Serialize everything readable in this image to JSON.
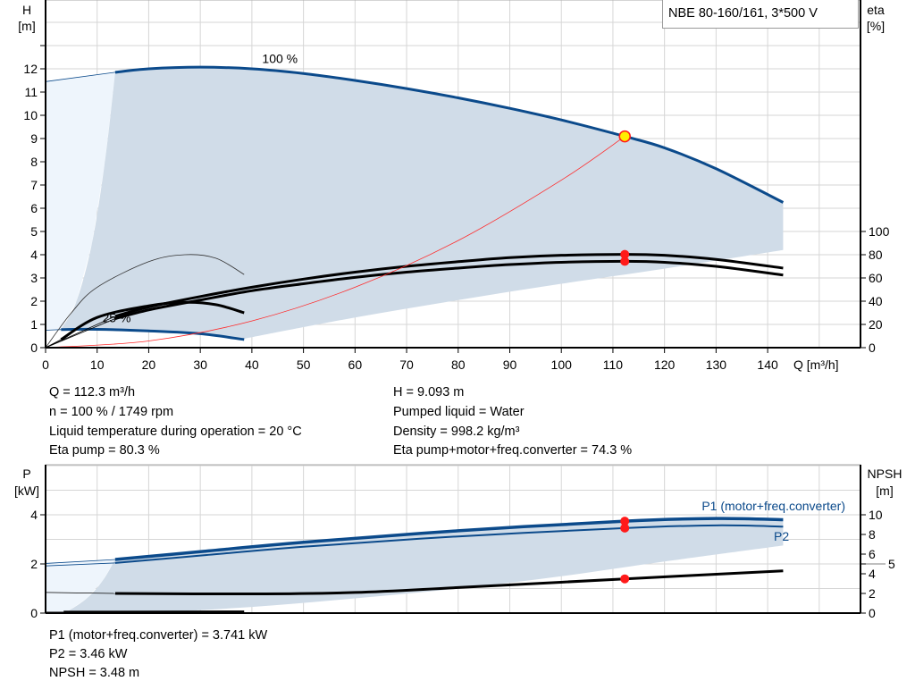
{
  "title": "NBE 80-160/161, 3*500 V",
  "colors": {
    "curve_blue": "#0b4a8b",
    "area_dark": "#d0dce8",
    "area_light": "#eef5fc",
    "grid": "#d6d6d6",
    "system_curve": "#ff2a2a",
    "duty_point": "#ff1a1a",
    "duty_point_fill": "#ffee00"
  },
  "info_top_left": [
    "Q = 112.3 m³/h",
    "n = 100 % / 1749 rpm",
    "Liquid temperature during operation = 20 °C",
    "Eta pump = 80.3 %"
  ],
  "info_top_right": [
    "H = 9.093 m",
    "Pumped liquid = Water",
    "Density = 998.2 kg/m³",
    "Eta pump+motor+freq.converter = 74.3 %"
  ],
  "info_bottom": [
    "P1 (motor+freq.converter) = 3.741 kW",
    "P2 = 3.46 kW",
    "NPSH = 3.48 m"
  ],
  "chart_data": [
    {
      "type": "line",
      "xlabel": "Q [m³/h]",
      "ylabel": [
        "H",
        "[m]"
      ],
      "y2label": [
        "eta",
        "[%]"
      ],
      "xlim": [
        0,
        158
      ],
      "ylim": [
        0,
        15
      ],
      "y2lim": [
        0,
        300
      ],
      "xticks": [
        0,
        10,
        20,
        30,
        40,
        50,
        60,
        70,
        80,
        90,
        100,
        110,
        120,
        130,
        140
      ],
      "yticks": [
        0,
        1,
        2,
        3,
        4,
        5,
        6,
        7,
        8,
        9,
        10,
        11,
        12
      ],
      "y2ticks": [
        0,
        20,
        40,
        60,
        80,
        100
      ],
      "grid": true,
      "curve_labels": [
        {
          "text": "100 %",
          "x": 42,
          "y": 12.25
        },
        {
          "text": "25 %",
          "x": 11,
          "y": 1.1
        }
      ],
      "series": [
        {
          "kind": "H 100%",
          "axis": "H",
          "points": [
            [
              13.5,
              11.85
            ],
            [
              20,
              12.0
            ],
            [
              30,
              12.07
            ],
            [
              40,
              12.0
            ],
            [
              50,
              11.8
            ],
            [
              60,
              11.5
            ],
            [
              70,
              11.15
            ],
            [
              80,
              10.75
            ],
            [
              90,
              10.3
            ],
            [
              100,
              9.8
            ],
            [
              112.3,
              9.093
            ],
            [
              120,
              8.6
            ],
            [
              130,
              7.7
            ],
            [
              143,
              6.25
            ]
          ],
          "extension": [
            [
              0,
              11.45
            ],
            [
              13.5,
              11.85
            ]
          ]
        },
        {
          "kind": "H 25%",
          "axis": "H",
          "points": [
            [
              3,
              0.78
            ],
            [
              10,
              0.79
            ],
            [
              20,
              0.72
            ],
            [
              30,
              0.6
            ],
            [
              38.5,
              0.35
            ]
          ],
          "extension": [
            [
              0,
              0.75
            ],
            [
              3,
              0.78
            ]
          ]
        },
        {
          "kind": "Eta pump",
          "axis": "eta",
          "points": [
            [
              13.5,
              27
            ],
            [
              20,
              35
            ],
            [
              30,
              44
            ],
            [
              40,
              52
            ],
            [
              50,
              59
            ],
            [
              60,
              65
            ],
            [
              70,
              70
            ],
            [
              80,
              74
            ],
            [
              90,
              77.5
            ],
            [
              100,
              79.5
            ],
            [
              112.3,
              80.3
            ],
            [
              120,
              79.5
            ],
            [
              130,
              76
            ],
            [
              143,
              68.5
            ]
          ],
          "extension": [
            [
              0,
              0
            ],
            [
              13.5,
              27
            ]
          ]
        },
        {
          "kind": "Eta total",
          "axis": "eta",
          "points": [
            [
              13.5,
              25
            ],
            [
              20,
              32.5
            ],
            [
              30,
              41
            ],
            [
              40,
              49
            ],
            [
              50,
              55
            ],
            [
              60,
              60.5
            ],
            [
              70,
              65
            ],
            [
              80,
              68.5
            ],
            [
              90,
              71.5
            ],
            [
              100,
              73.5
            ],
            [
              112.3,
              74.3
            ],
            [
              120,
              73.5
            ],
            [
              130,
              70
            ],
            [
              143,
              62.5
            ]
          ],
          "extension": [
            [
              0,
              0
            ],
            [
              13.5,
              25
            ]
          ]
        },
        {
          "kind": "Eta 25%",
          "axis": "eta",
          "points": [
            [
              3,
              7
            ],
            [
              10,
              26
            ],
            [
              20,
              36
            ],
            [
              27,
              39
            ],
            [
              33,
              37
            ],
            [
              38.5,
              30
            ]
          ],
          "extension": [
            [
              0,
              0
            ],
            [
              3,
              7
            ]
          ]
        },
        {
          "kind": "Eta max",
          "axis": "eta",
          "thin": true,
          "points": [
            [
              0,
              0
            ],
            [
              5,
              30
            ],
            [
              10,
              52
            ],
            [
              20,
              74
            ],
            [
              27,
              80
            ],
            [
              33,
              77
            ],
            [
              38.5,
              63
            ]
          ]
        },
        {
          "kind": "System curve",
          "axis": "H",
          "points": [
            [
              0,
              0
            ],
            [
              20,
              0.29
            ],
            [
              40,
              1.15
            ],
            [
              60,
              2.6
            ],
            [
              80,
              4.61
            ],
            [
              100,
              7.21
            ],
            [
              112.3,
              9.093
            ]
          ]
        }
      ],
      "operating_area": {
        "top": "H 100%",
        "right_bottom": 4.2,
        "bottom": [
          [
            143,
            4.2
          ],
          [
            120,
            3.4
          ],
          [
            100,
            2.75
          ],
          [
            80,
            2.05
          ],
          [
            60,
            1.3
          ],
          [
            40,
            0.45
          ],
          [
            38.5,
            0.35
          ]
        ],
        "left": [
          [
            3,
            0.78
          ],
          [
            6,
            2.0
          ],
          [
            9,
            4.5
          ],
          [
            11.5,
            8
          ],
          [
            13.5,
            11.85
          ]
        ]
      },
      "duty_point": {
        "Q": 112.3,
        "H": 9.093,
        "eta_pump": 80.3,
        "eta_total": 74.3
      }
    },
    {
      "type": "line",
      "ylabel": [
        "P",
        "[kW]"
      ],
      "y2label": [
        "NPSH",
        "[m]"
      ],
      "xlim": [
        0,
        158
      ],
      "ylim": [
        0,
        6
      ],
      "y2lim": [
        0,
        15
      ],
      "yticks": [
        0,
        2,
        4
      ],
      "y2ticks": [
        0,
        2,
        4,
        5,
        6,
        8,
        10
      ],
      "grid": true,
      "series": [
        {
          "name": "P1 (motor+freq.converter)",
          "axis": "P",
          "points": [
            [
              13.5,
              2.18
            ],
            [
              30,
              2.5
            ],
            [
              50,
              2.88
            ],
            [
              80,
              3.35
            ],
            [
              112.3,
              3.741
            ],
            [
              130,
              3.85
            ],
            [
              143,
              3.8
            ]
          ],
          "extension": [
            [
              0,
              2.02
            ],
            [
              13.5,
              2.18
            ]
          ]
        },
        {
          "name": "P2",
          "axis": "P",
          "points": [
            [
              13.5,
              2.04
            ],
            [
              30,
              2.34
            ],
            [
              50,
              2.7
            ],
            [
              80,
              3.12
            ],
            [
              112.3,
              3.46
            ],
            [
              130,
              3.57
            ],
            [
              143,
              3.52
            ]
          ],
          "extension": [
            [
              0,
              1.92
            ],
            [
              13.5,
              2.04
            ]
          ]
        },
        {
          "kind": "NPSH",
          "axis": "NPSH",
          "points": [
            [
              13.5,
              2.0
            ],
            [
              40,
              1.95
            ],
            [
              60,
              2.1
            ],
            [
              80,
              2.6
            ],
            [
              112.3,
              3.48
            ],
            [
              143,
              4.3
            ]
          ],
          "extension": [
            [
              0,
              2.1
            ],
            [
              13.5,
              2.0
            ]
          ]
        },
        {
          "kind": "P 25%",
          "axis": "P",
          "points": [
            [
              3.5,
              0.04
            ],
            [
              38.5,
              0.05
            ]
          ],
          "extension": [
            [
              0,
              0.04
            ],
            [
              3.5,
              0.04
            ]
          ]
        }
      ],
      "operating_area": {
        "bottom": [
          [
            143,
            2.75
          ],
          [
            120,
            2.1
          ],
          [
            100,
            1.5
          ],
          [
            80,
            1.0
          ],
          [
            60,
            0.6
          ],
          [
            40,
            0.25
          ],
          [
            20,
            0.03
          ],
          [
            4,
            0.03
          ]
        ],
        "left": [
          [
            4,
            0.03
          ],
          [
            8,
            0.6
          ],
          [
            11,
            1.3
          ],
          [
            13.5,
            2.18
          ]
        ]
      },
      "duty_point": {
        "Q": 112.3,
        "P1": 3.741,
        "P2": 3.46,
        "NPSH": 3.48
      }
    }
  ]
}
